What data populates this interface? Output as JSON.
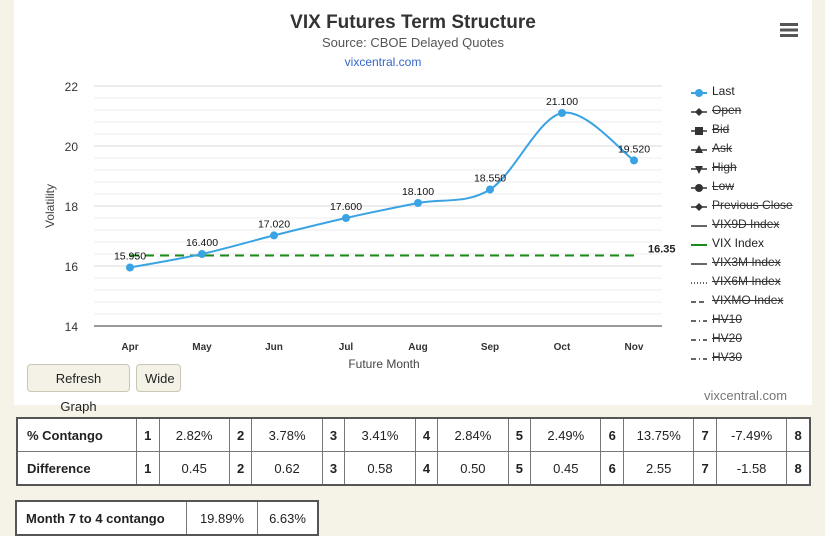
{
  "header": {
    "title": "VIX Futures Term Structure",
    "subtitle": "Source: CBOE Delayed Quotes",
    "link": "vixcentral.com"
  },
  "buttons": {
    "refresh": "Refresh Graph",
    "wide": "Wide"
  },
  "credit": "vixcentral.com",
  "chart_data": {
    "type": "line",
    "categories": [
      "Apr",
      "May",
      "Jun",
      "Jul",
      "Aug",
      "Sep",
      "Oct",
      "Nov"
    ],
    "series": [
      {
        "name": "Last",
        "values": [
          15.95,
          16.4,
          17.02,
          17.6,
          18.1,
          18.55,
          21.1,
          19.52
        ],
        "labels": [
          "15.950",
          "16.400",
          "17.020",
          "17.600",
          "18.100",
          "18.550",
          "21.100",
          "19.520"
        ],
        "color": "#3aa3e3"
      },
      {
        "name": "VIX Index",
        "value": 16.35,
        "label": "16.35",
        "color": "#1a8a1a"
      }
    ],
    "xlabel": "Future Month",
    "ylabel": "Volatility",
    "ylim": [
      14,
      22
    ],
    "yticks": [
      "14",
      "16",
      "18",
      "20",
      "22"
    ],
    "grid": true,
    "legend_position": "right"
  },
  "legend": [
    {
      "label": "Last",
      "enabled": true,
      "icon": "line-circle",
      "color": "#3aa3e3"
    },
    {
      "label": "Open",
      "enabled": false,
      "icon": "line-diamond",
      "color": "#333333"
    },
    {
      "label": "Bid",
      "enabled": false,
      "icon": "line-square",
      "color": "#333333"
    },
    {
      "label": "Ask",
      "enabled": false,
      "icon": "line-triangle",
      "color": "#333333"
    },
    {
      "label": "High",
      "enabled": false,
      "icon": "line-triangle-down",
      "color": "#333333"
    },
    {
      "label": "Low",
      "enabled": false,
      "icon": "line-circle",
      "color": "#333333"
    },
    {
      "label": "Previous Close",
      "enabled": false,
      "icon": "line-diamond",
      "color": "#333333"
    },
    {
      "label": "VIX9D Index",
      "enabled": false,
      "icon": "solid-line",
      "color": "#333333"
    },
    {
      "label": "VIX Index",
      "enabled": true,
      "icon": "solid-line",
      "color": "#1a8a1a"
    },
    {
      "label": "VIX3M Index",
      "enabled": false,
      "icon": "solid-line",
      "color": "#333333"
    },
    {
      "label": "VIX6M Index",
      "enabled": false,
      "icon": "dotted-line",
      "color": "#333333"
    },
    {
      "label": "VIXMO Index",
      "enabled": false,
      "icon": "dashed-line",
      "color": "#333333"
    },
    {
      "label": "HV10",
      "enabled": false,
      "icon": "dash-dot-line",
      "color": "#333333"
    },
    {
      "label": "HV20",
      "enabled": false,
      "icon": "dash-dot-line",
      "color": "#333333"
    },
    {
      "label": "HV30",
      "enabled": false,
      "icon": "dash-dot-line",
      "color": "#333333"
    }
  ],
  "contango_table": {
    "rows": [
      {
        "label": "% Contango",
        "cells": [
          "1",
          "2.82%",
          "2",
          "3.78%",
          "3",
          "3.41%",
          "4",
          "2.84%",
          "5",
          "2.49%",
          "6",
          "13.75%",
          "7",
          "-7.49%",
          "8"
        ]
      },
      {
        "label": "Difference",
        "cells": [
          "1",
          "0.45",
          "2",
          "0.62",
          "3",
          "0.58",
          "4",
          "0.50",
          "5",
          "0.45",
          "6",
          "2.55",
          "7",
          "-1.58",
          "8"
        ]
      }
    ]
  },
  "month_table": {
    "label": "Month 7 to 4 contango",
    "values": [
      "19.89%",
      "6.63%"
    ]
  }
}
